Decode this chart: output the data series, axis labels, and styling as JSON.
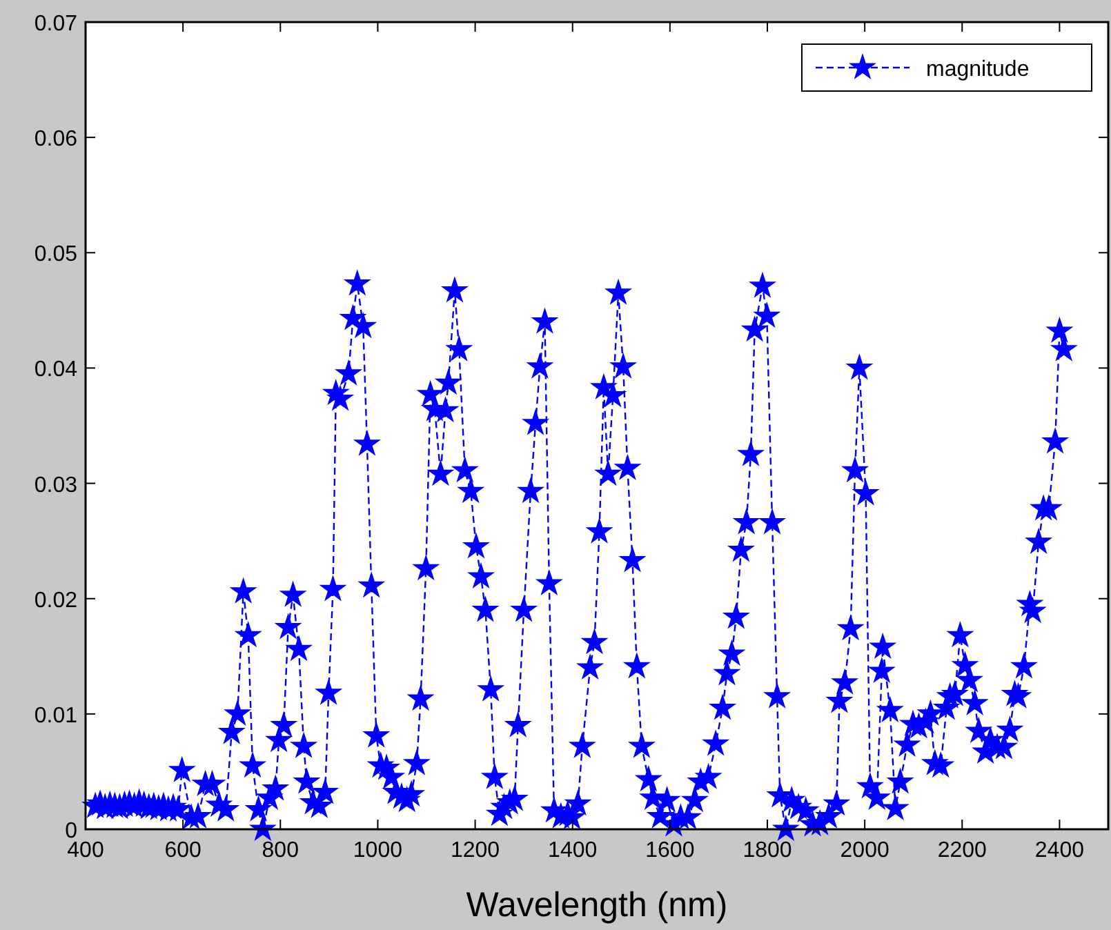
{
  "chart_data": {
    "type": "line",
    "xlabel": "Wavelength (nm)",
    "xlim": [
      400,
      2500
    ],
    "xticks": [
      400,
      600,
      800,
      1000,
      1200,
      1400,
      1600,
      1800,
      2000,
      2200,
      2400
    ],
    "ylim": [
      0,
      0.07
    ],
    "yticks": [
      0,
      0.01,
      0.02,
      0.03,
      0.04,
      0.05,
      0.06,
      0.07
    ],
    "grid": false,
    "legend": "top right",
    "marker": "star",
    "line_style": "dashed",
    "series": [
      {
        "name": "magnitude",
        "color": "#0000ff",
        "x": [
          420,
          430,
          440,
          450,
          460,
          470,
          480,
          490,
          500,
          510,
          520,
          530,
          540,
          550,
          560,
          570,
          580,
          590,
          598,
          617,
          631,
          646,
          660,
          674,
          688,
          700,
          712,
          724,
          734,
          743,
          755,
          764,
          778,
          790,
          797,
          807,
          816,
          826,
          838,
          848,
          854,
          867,
          880,
          892,
          899,
          908,
          914,
          923,
          940,
          949,
          958,
          970,
          978,
          987,
          997,
          1006,
          1018,
          1028,
          1037,
          1049,
          1060,
          1069,
          1080,
          1088,
          1099,
          1108,
          1117,
          1129,
          1139,
          1145,
          1158,
          1167,
          1179,
          1191,
          1202,
          1212,
          1221,
          1232,
          1240,
          1250,
          1259,
          1271,
          1281,
          1288,
          1300,
          1314,
          1324,
          1333,
          1343,
          1352,
          1362,
          1376,
          1390,
          1399,
          1411,
          1420,
          1436,
          1445,
          1455,
          1464,
          1473,
          1483,
          1494,
          1504,
          1513,
          1523,
          1532,
          1542,
          1556,
          1565,
          1580,
          1594,
          1608,
          1622,
          1637,
          1651,
          1663,
          1679,
          1694,
          1708,
          1717,
          1727,
          1736,
          1746,
          1757,
          1766,
          1774,
          1790,
          1799,
          1810,
          1820,
          1826,
          1838,
          1850,
          1864,
          1879,
          1893,
          1908,
          1926,
          1942,
          1948,
          1959,
          1971,
          1980,
          1989,
          2002,
          2011,
          2025,
          2035,
          2037,
          2052,
          2063,
          2073,
          2087,
          2099,
          2111,
          2125,
          2135,
          2144,
          2156,
          2168,
          2175,
          2185,
          2196,
          2206,
          2215,
          2226,
          2234,
          2248,
          2258,
          2272,
          2286,
          2298,
          2308,
          2315,
          2327,
          2339,
          2345,
          2357,
          2367,
          2378,
          2391,
          2400,
          2409
        ],
        "values": [
          0.002,
          0.0022,
          0.0019,
          0.0021,
          0.002,
          0.0019,
          0.0021,
          0.0022,
          0.002,
          0.0023,
          0.0021,
          0.0019,
          0.002,
          0.0018,
          0.002,
          0.0017,
          0.0019,
          0.0017,
          0.0051,
          0.001,
          0.0011,
          0.0039,
          0.0039,
          0.0021,
          0.0017,
          0.0084,
          0.01,
          0.0206,
          0.0168,
          0.0055,
          0.0017,
          0.0,
          0.0027,
          0.0035,
          0.0077,
          0.009,
          0.0175,
          0.0203,
          0.0156,
          0.0072,
          0.0041,
          0.0023,
          0.002,
          0.0032,
          0.0118,
          0.0208,
          0.0378,
          0.0373,
          0.0395,
          0.0443,
          0.0473,
          0.0436,
          0.0334,
          0.0211,
          0.0081,
          0.0055,
          0.0053,
          0.0045,
          0.0032,
          0.0028,
          0.0025,
          0.003,
          0.0057,
          0.0113,
          0.0226,
          0.0377,
          0.0364,
          0.0308,
          0.0363,
          0.0387,
          0.0467,
          0.0416,
          0.0311,
          0.0293,
          0.0245,
          0.0219,
          0.019,
          0.0121,
          0.0045,
          0.0013,
          0.0019,
          0.0023,
          0.0026,
          0.009,
          0.019,
          0.0293,
          0.0352,
          0.0401,
          0.044,
          0.0213,
          0.0016,
          0.0011,
          0.0013,
          0.001,
          0.0022,
          0.0072,
          0.014,
          0.0162,
          0.0258,
          0.0383,
          0.0308,
          0.0376,
          0.0465,
          0.0401,
          0.0313,
          0.0233,
          0.0141,
          0.0072,
          0.0043,
          0.0027,
          0.0011,
          0.0025,
          0.0004,
          0.001,
          0.001,
          0.0025,
          0.0041,
          0.0045,
          0.0074,
          0.0105,
          0.0135,
          0.0152,
          0.0184,
          0.0242,
          0.0266,
          0.0325,
          0.0433,
          0.0471,
          0.0445,
          0.0266,
          0.0115,
          0.0029,
          0.0,
          0.0025,
          0.0019,
          0.0016,
          0.0004,
          0.0005,
          0.0011,
          0.0022,
          0.0111,
          0.0127,
          0.0174,
          0.0311,
          0.04,
          0.0291,
          0.0037,
          0.0027,
          0.0137,
          0.0158,
          0.0103,
          0.0018,
          0.0041,
          0.0073,
          0.0091,
          0.0089,
          0.0093,
          0.01,
          0.0057,
          0.0055,
          0.0105,
          0.0115,
          0.0117,
          0.0168,
          0.0142,
          0.0129,
          0.0109,
          0.0085,
          0.0067,
          0.0077,
          0.0071,
          0.0071,
          0.0086,
          0.0117,
          0.0115,
          0.0141,
          0.0195,
          0.0189,
          0.0249,
          0.0278,
          0.0278,
          0.0336,
          0.0432,
          0.0416
        ]
      }
    ]
  }
}
